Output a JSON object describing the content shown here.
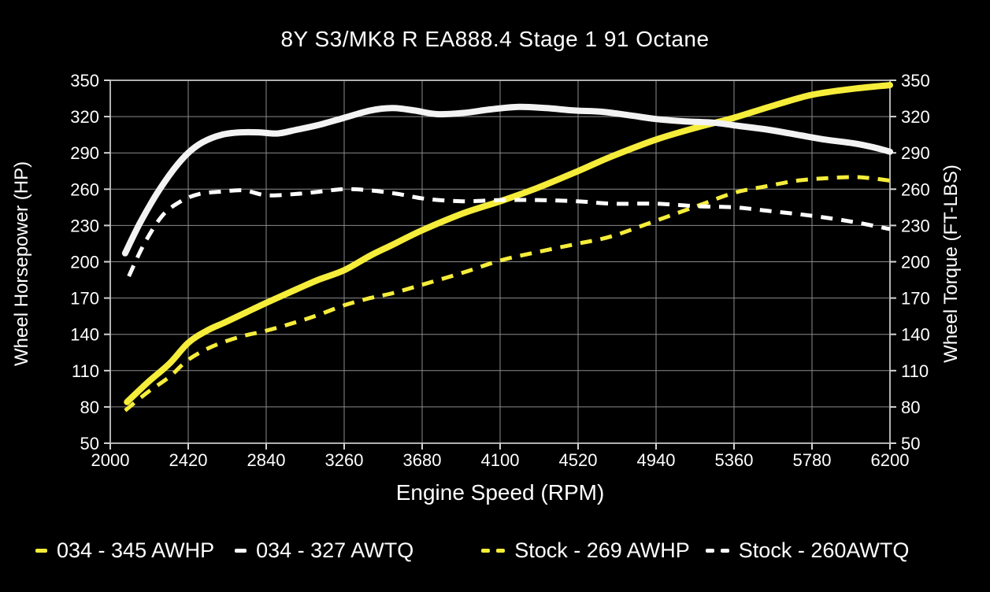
{
  "chart_data": {
    "type": "line",
    "title": "8Y S3/MK8 R EA888.4 Stage 1 91 Octane",
    "xlabel": "Engine Speed (RPM)",
    "ylabel_left": "Wheel Horsepower (HP)",
    "ylabel_right": "Wheel Torque (FT-LBS)",
    "xlim": [
      2000,
      6200
    ],
    "ylim": [
      50,
      350
    ],
    "x_ticks": [
      2000,
      2420,
      2840,
      3260,
      3680,
      4100,
      4520,
      4940,
      5360,
      5780,
      6200
    ],
    "y_ticks": [
      50,
      80,
      110,
      140,
      170,
      200,
      230,
      260,
      290,
      320,
      350
    ],
    "grid": true,
    "legend_position": "bottom",
    "colors": {
      "yellow": "#f5ed3a",
      "white": "#f3f3f3",
      "dashed_white": "#ffffff",
      "grid": "#8c8c8c",
      "frame": "#b0b0b0",
      "ticks": "#d4d4d4",
      "text": "#ffffff",
      "background": "#000000"
    },
    "series": [
      {
        "name": "034 - 345 AWHP",
        "color": "#f5ed3a",
        "style": "solid",
        "width": 8,
        "axis": "horsepower",
        "peak": 345,
        "points": [
          [
            2090,
            84
          ],
          [
            2200,
            100
          ],
          [
            2320,
            116
          ],
          [
            2420,
            133
          ],
          [
            2520,
            143
          ],
          [
            2620,
            150
          ],
          [
            2730,
            158
          ],
          [
            2840,
            166
          ],
          [
            3000,
            177
          ],
          [
            3120,
            185
          ],
          [
            3260,
            193
          ],
          [
            3400,
            205
          ],
          [
            3520,
            214
          ],
          [
            3680,
            226
          ],
          [
            3900,
            240
          ],
          [
            4100,
            250
          ],
          [
            4300,
            261
          ],
          [
            4520,
            275
          ],
          [
            4700,
            287
          ],
          [
            4940,
            301
          ],
          [
            5160,
            311
          ],
          [
            5360,
            319
          ],
          [
            5570,
            329
          ],
          [
            5780,
            338
          ],
          [
            6000,
            343
          ],
          [
            6200,
            346
          ]
        ]
      },
      {
        "name": "034 - 327 AWTQ",
        "color": "#f3f3f3",
        "style": "solid",
        "width": 8,
        "axis": "torque",
        "peak": 327,
        "points": [
          [
            2080,
            207
          ],
          [
            2160,
            232
          ],
          [
            2250,
            256
          ],
          [
            2340,
            276
          ],
          [
            2420,
            290
          ],
          [
            2500,
            299
          ],
          [
            2600,
            305
          ],
          [
            2700,
            307
          ],
          [
            2800,
            307
          ],
          [
            2900,
            306
          ],
          [
            3000,
            309
          ],
          [
            3120,
            313
          ],
          [
            3260,
            319
          ],
          [
            3400,
            325
          ],
          [
            3520,
            327
          ],
          [
            3640,
            325
          ],
          [
            3760,
            322
          ],
          [
            3900,
            323
          ],
          [
            4050,
            326
          ],
          [
            4200,
            328
          ],
          [
            4350,
            327
          ],
          [
            4500,
            325
          ],
          [
            4650,
            324
          ],
          [
            4800,
            321
          ],
          [
            4940,
            318
          ],
          [
            5100,
            316
          ],
          [
            5250,
            315
          ],
          [
            5400,
            312
          ],
          [
            5550,
            309
          ],
          [
            5700,
            305
          ],
          [
            5850,
            301
          ],
          [
            6000,
            298
          ],
          [
            6100,
            295
          ],
          [
            6200,
            291
          ]
        ]
      },
      {
        "name": "Stock - 269 AWHP",
        "color": "#f5ed3a",
        "style": "dashed",
        "width": 5,
        "axis": "horsepower",
        "peak": 269,
        "points": [
          [
            2080,
            77
          ],
          [
            2200,
            92
          ],
          [
            2320,
            105
          ],
          [
            2420,
            119
          ],
          [
            2550,
            130
          ],
          [
            2700,
            138
          ],
          [
            2840,
            143
          ],
          [
            3000,
            150
          ],
          [
            3120,
            156
          ],
          [
            3260,
            164
          ],
          [
            3400,
            170
          ],
          [
            3520,
            174
          ],
          [
            3680,
            181
          ],
          [
            3900,
            191
          ],
          [
            4100,
            201
          ],
          [
            4300,
            208
          ],
          [
            4520,
            215
          ],
          [
            4700,
            221
          ],
          [
            4940,
            234
          ],
          [
            5160,
            246
          ],
          [
            5360,
            257
          ],
          [
            5520,
            262
          ],
          [
            5700,
            267
          ],
          [
            5850,
            269
          ],
          [
            6000,
            270
          ],
          [
            6100,
            269
          ],
          [
            6200,
            267
          ]
        ]
      },
      {
        "name": "Stock - 260AWTQ",
        "color": "#ffffff",
        "style": "dashed",
        "width": 5,
        "axis": "torque",
        "peak": 260,
        "points": [
          [
            2100,
            188
          ],
          [
            2180,
            214
          ],
          [
            2280,
            238
          ],
          [
            2380,
            250
          ],
          [
            2480,
            256
          ],
          [
            2600,
            258
          ],
          [
            2720,
            259
          ],
          [
            2840,
            255
          ],
          [
            3000,
            256
          ],
          [
            3130,
            258
          ],
          [
            3260,
            260
          ],
          [
            3400,
            259
          ],
          [
            3550,
            256
          ],
          [
            3700,
            252
          ],
          [
            3900,
            250
          ],
          [
            4100,
            251
          ],
          [
            4300,
            251
          ],
          [
            4520,
            250
          ],
          [
            4700,
            248
          ],
          [
            4940,
            248
          ],
          [
            5150,
            246
          ],
          [
            5360,
            245
          ],
          [
            5550,
            242
          ],
          [
            5780,
            238
          ],
          [
            6000,
            233
          ],
          [
            6200,
            227
          ]
        ]
      }
    ]
  }
}
